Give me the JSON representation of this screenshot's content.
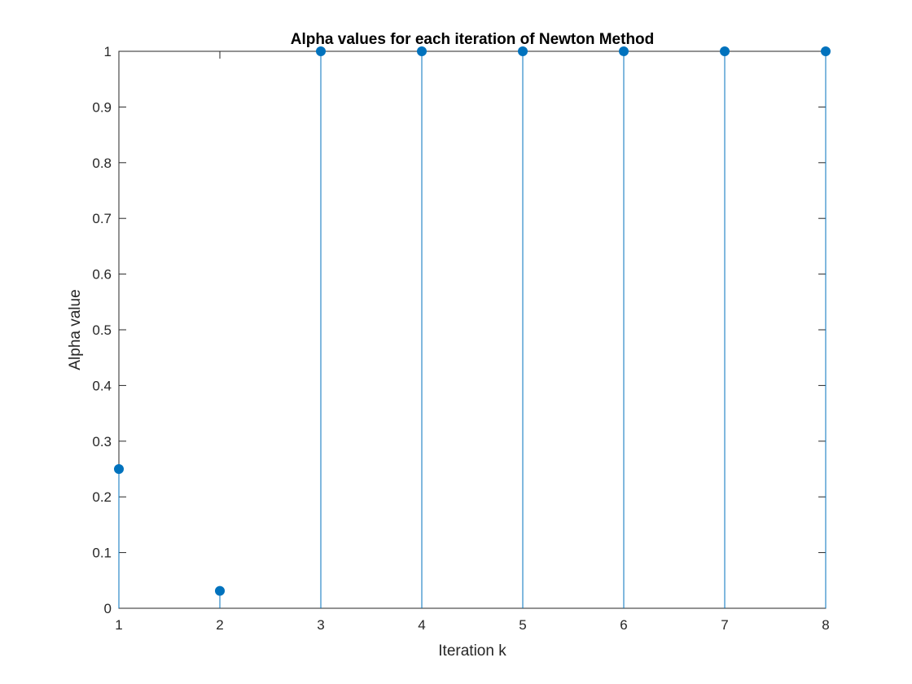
{
  "chart_data": {
    "type": "stem",
    "title": "Alpha values for each iteration of Newton Method",
    "xlabel": "Iteration k",
    "ylabel": "Alpha value",
    "x": [
      1,
      2,
      3,
      4,
      5,
      6,
      7,
      8
    ],
    "values": [
      0.25,
      0.03125,
      1,
      1,
      1,
      1,
      1,
      1
    ],
    "xlim": [
      1,
      8
    ],
    "ylim": [
      0,
      1
    ],
    "xticks": [
      "1",
      "2",
      "3",
      "4",
      "5",
      "6",
      "7",
      "8"
    ],
    "yticks": [
      "0",
      "0.1",
      "0.2",
      "0.3",
      "0.4",
      "0.5",
      "0.6",
      "0.7",
      "0.8",
      "0.9",
      "1"
    ],
    "grid": false,
    "color": "#0072BD"
  }
}
